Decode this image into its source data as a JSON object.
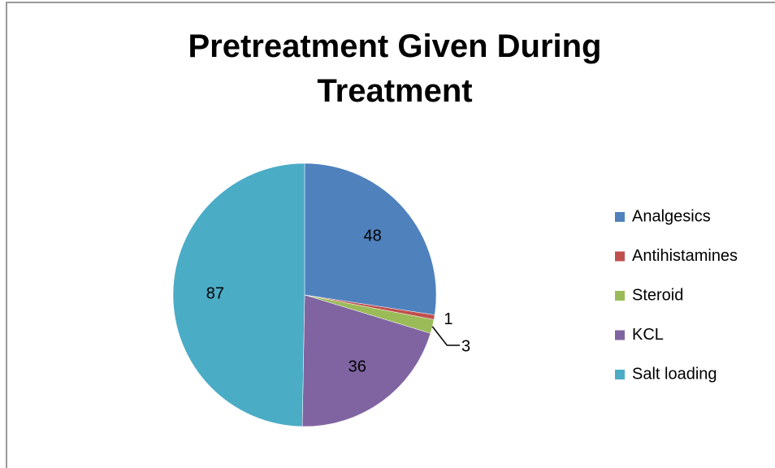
{
  "chart_data": {
    "type": "pie",
    "title": "Pretreatment Given During Treatment",
    "categories": [
      "Analgesics",
      "Antihistamines",
      "Steroid",
      "KCL",
      "Salt loading"
    ],
    "values": [
      48,
      1,
      3,
      36,
      87
    ],
    "colors": [
      "#4f81bd",
      "#c0504d",
      "#9bbb59",
      "#8064a2",
      "#4bacc6"
    ],
    "legend": "right"
  }
}
